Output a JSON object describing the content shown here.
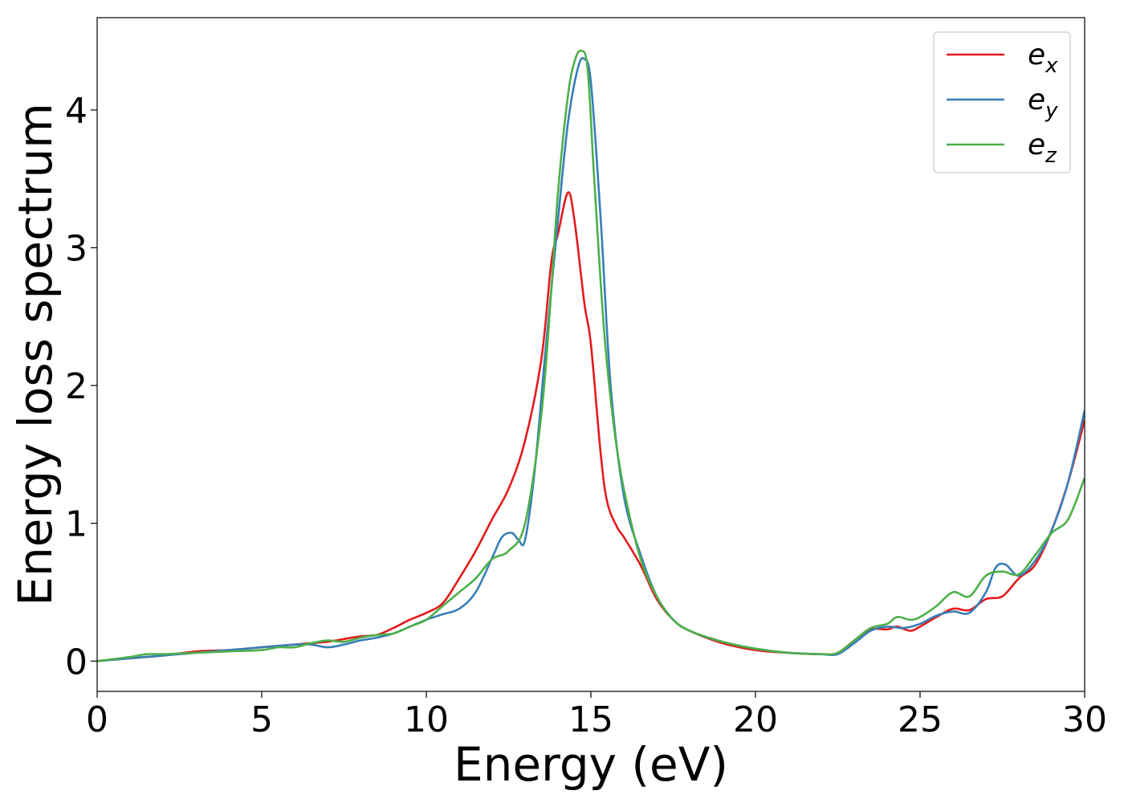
{
  "chart_data": {
    "type": "line",
    "title": "",
    "xlabel": "Energy (eV)",
    "ylabel": "Energy loss spectrum",
    "xlim": [
      0,
      30
    ],
    "ylim": [
      -0.22,
      4.67
    ],
    "xticks": [
      0,
      5,
      10,
      15,
      20,
      25,
      30
    ],
    "yticks": [
      0,
      1,
      2,
      3,
      4
    ],
    "grid": false,
    "legend_position": "top-right",
    "series": [
      {
        "name": "e_x",
        "label_base": "e",
        "label_sub": "x",
        "color": "#e41a1c",
        "x": [
          0,
          1,
          2,
          3,
          4,
          5,
          6,
          6.5,
          7,
          7.5,
          8,
          8.5,
          9,
          9.5,
          10,
          10.5,
          11,
          11.5,
          12,
          12.5,
          13,
          13.5,
          13.8,
          14,
          14.3,
          14.5,
          14.8,
          15,
          15.3,
          15.5,
          15.8,
          16,
          16.5,
          17,
          17.5,
          18,
          19,
          20,
          21,
          22,
          22.5,
          23,
          23.5,
          24,
          24.3,
          24.7,
          25,
          25.5,
          26,
          26.5,
          27,
          27.5,
          28,
          28.5,
          29,
          29.5,
          30
        ],
        "y": [
          0,
          0.02,
          0.04,
          0.07,
          0.08,
          0.1,
          0.12,
          0.13,
          0.14,
          0.16,
          0.18,
          0.19,
          0.24,
          0.3,
          0.35,
          0.42,
          0.6,
          0.8,
          1.03,
          1.25,
          1.6,
          2.2,
          2.9,
          3.1,
          3.4,
          3.2,
          2.6,
          2.3,
          1.5,
          1.15,
          0.97,
          0.9,
          0.7,
          0.45,
          0.3,
          0.22,
          0.13,
          0.08,
          0.06,
          0.05,
          0.06,
          0.15,
          0.23,
          0.23,
          0.25,
          0.22,
          0.25,
          0.32,
          0.38,
          0.37,
          0.45,
          0.47,
          0.6,
          0.7,
          0.95,
          1.3,
          1.75
        ]
      },
      {
        "name": "e_y",
        "label_base": "e",
        "label_sub": "y",
        "color": "#377eb8",
        "x": [
          0,
          1,
          2,
          3,
          4,
          5,
          6,
          6.5,
          7,
          7.5,
          8,
          8.5,
          9,
          9.5,
          10,
          10.5,
          11,
          11.5,
          12,
          12.3,
          12.6,
          12.8,
          13,
          13.3,
          13.6,
          14,
          14.3,
          14.6,
          14.8,
          15,
          15.3,
          15.6,
          16,
          16.5,
          17,
          17.5,
          18,
          19,
          20,
          21,
          22,
          22.5,
          23,
          23.5,
          24,
          24.5,
          25,
          25.5,
          26,
          26.5,
          27,
          27.3,
          27.6,
          28,
          28.5,
          29,
          29.5,
          30
        ],
        "y": [
          0,
          0.02,
          0.04,
          0.06,
          0.08,
          0.1,
          0.12,
          0.12,
          0.1,
          0.12,
          0.15,
          0.17,
          0.2,
          0.25,
          0.3,
          0.34,
          0.38,
          0.5,
          0.75,
          0.9,
          0.93,
          0.88,
          0.88,
          1.4,
          2.2,
          3.2,
          3.9,
          4.3,
          4.37,
          4.2,
          3.2,
          2.0,
          1.2,
          0.78,
          0.47,
          0.3,
          0.22,
          0.14,
          0.09,
          0.06,
          0.05,
          0.05,
          0.13,
          0.22,
          0.25,
          0.24,
          0.27,
          0.33,
          0.36,
          0.35,
          0.5,
          0.68,
          0.7,
          0.62,
          0.73,
          0.95,
          1.3,
          1.82
        ]
      },
      {
        "name": "e_z",
        "label_base": "e",
        "label_sub": "z",
        "color": "#4daf4a",
        "x": [
          0,
          1,
          1.5,
          2,
          3,
          4,
          5,
          5.5,
          6,
          6.5,
          7,
          7.5,
          8,
          8.5,
          9,
          9.5,
          10,
          10.5,
          11,
          11.5,
          12,
          12.5,
          13,
          13.5,
          13.8,
          14,
          14.3,
          14.5,
          14.7,
          14.9,
          15.1,
          15.4,
          15.7,
          16,
          16.5,
          17,
          17.5,
          18,
          19,
          20,
          21,
          22,
          22.5,
          23,
          23.5,
          24,
          24.3,
          24.7,
          25,
          25.5,
          26,
          26.5,
          27,
          27.5,
          28,
          28.5,
          29,
          29.5,
          30
        ],
        "y": [
          0,
          0.03,
          0.05,
          0.05,
          0.06,
          0.07,
          0.08,
          0.1,
          0.1,
          0.13,
          0.15,
          0.14,
          0.17,
          0.19,
          0.2,
          0.25,
          0.3,
          0.4,
          0.5,
          0.6,
          0.74,
          0.8,
          1.0,
          1.8,
          2.7,
          3.4,
          4.1,
          4.35,
          4.43,
          4.3,
          3.5,
          2.4,
          1.7,
          1.25,
          0.75,
          0.47,
          0.3,
          0.22,
          0.14,
          0.09,
          0.06,
          0.05,
          0.06,
          0.15,
          0.24,
          0.27,
          0.32,
          0.3,
          0.32,
          0.4,
          0.5,
          0.47,
          0.62,
          0.65,
          0.63,
          0.77,
          0.93,
          1.03,
          1.33
        ]
      }
    ]
  }
}
